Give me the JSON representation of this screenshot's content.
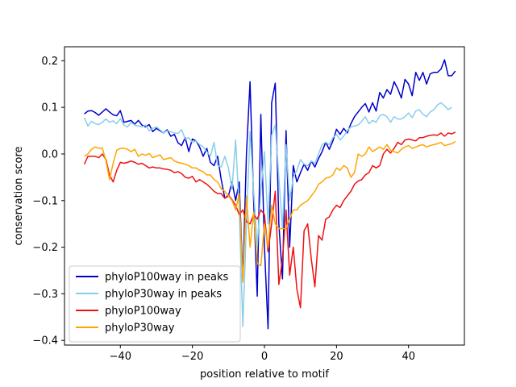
{
  "chart_data": {
    "type": "line",
    "title": "",
    "xlabel": "position relative to motif",
    "ylabel": "conservation score",
    "xlim": [
      -55.5,
      55.5
    ],
    "ylim": [
      -0.41,
      0.23
    ],
    "xticks": [
      -40,
      -20,
      0,
      20,
      40
    ],
    "yticks": [
      -0.4,
      -0.3,
      -0.2,
      -0.1,
      0.0,
      0.1,
      0.2
    ],
    "ytick_labels": [
      "−0.4",
      "−0.3",
      "−0.2",
      "−0.1",
      "0.0",
      "0.1",
      "0.2"
    ],
    "xtick_labels": [
      "−40",
      "−20",
      "0",
      "20",
      "40"
    ],
    "grid": false,
    "legend_position": "lower-left",
    "x_start": -50,
    "series": [
      {
        "name": "phyloP100way in peaks",
        "color": "#0000cc",
        "values": [
          0.086,
          0.092,
          0.093,
          0.089,
          0.083,
          0.09,
          0.097,
          0.09,
          0.084,
          0.082,
          0.093,
          0.068,
          0.07,
          0.072,
          0.064,
          0.072,
          0.062,
          0.058,
          0.063,
          0.048,
          0.055,
          0.05,
          0.045,
          0.052,
          0.038,
          0.042,
          0.024,
          0.018,
          0.035,
          0.005,
          0.032,
          0.028,
          0.015,
          -0.005,
          0.012,
          -0.018,
          -0.025,
          -0.005,
          -0.055,
          -0.095,
          -0.09,
          -0.06,
          -0.1,
          -0.06,
          -0.27,
          0.0,
          0.155,
          -0.1,
          -0.305,
          0.085,
          -0.2,
          -0.375,
          0.11,
          0.152,
          -0.15,
          -0.268,
          0.05,
          -0.2,
          -0.025,
          -0.06,
          -0.04,
          -0.022,
          -0.035,
          -0.015,
          -0.028,
          -0.01,
          0.005,
          0.025,
          0.01,
          0.028,
          0.053,
          0.042,
          0.055,
          0.045,
          0.065,
          0.08,
          0.09,
          0.1,
          0.108,
          0.09,
          0.11,
          0.092,
          0.132,
          0.12,
          0.138,
          0.128,
          0.155,
          0.14,
          0.12,
          0.16,
          0.15,
          0.125,
          0.175,
          0.158,
          0.175,
          0.15,
          0.172,
          0.175,
          0.175,
          0.182,
          0.202,
          0.168,
          0.168,
          0.178
        ]
      },
      {
        "name": "phyloP30way in peaks",
        "color": "#87ceeb",
        "values": [
          0.078,
          0.06,
          0.07,
          0.065,
          0.063,
          0.068,
          0.075,
          0.068,
          0.071,
          0.065,
          0.076,
          0.062,
          0.058,
          0.068,
          0.062,
          0.06,
          0.058,
          0.062,
          0.05,
          0.055,
          0.058,
          0.052,
          0.045,
          0.05,
          0.048,
          0.045,
          0.044,
          0.052,
          0.032,
          0.035,
          0.025,
          0.028,
          0.02,
          0.015,
          0.005,
          -0.005,
          0.025,
          -0.025,
          -0.028,
          -0.005,
          -0.03,
          -0.075,
          0.03,
          -0.12,
          -0.37,
          -0.15,
          0.048,
          -0.08,
          -0.2,
          -0.08,
          0.005,
          -0.15,
          0.04,
          0.062,
          -0.05,
          -0.16,
          0.02,
          -0.1,
          -0.05,
          -0.035,
          -0.012,
          -0.022,
          -0.025,
          -0.015,
          -0.02,
          0.0,
          0.02,
          0.025,
          0.02,
          0.035,
          0.042,
          0.03,
          0.038,
          0.05,
          0.058,
          0.06,
          0.062,
          0.07,
          0.08,
          0.065,
          0.072,
          0.068,
          0.082,
          0.085,
          0.08,
          0.068,
          0.08,
          0.075,
          0.075,
          0.08,
          0.088,
          0.078,
          0.092,
          0.095,
          0.085,
          0.08,
          0.09,
          0.095,
          0.105,
          0.11,
          0.103,
          0.095,
          0.1
        ]
      },
      {
        "name": "phyloP100way",
        "color": "#ee1111",
        "values": [
          -0.022,
          -0.005,
          -0.005,
          -0.005,
          -0.008,
          0.0,
          -0.012,
          -0.045,
          -0.06,
          -0.035,
          -0.018,
          -0.02,
          -0.018,
          -0.015,
          -0.018,
          -0.022,
          -0.02,
          -0.025,
          -0.03,
          -0.028,
          -0.03,
          -0.03,
          -0.032,
          -0.033,
          -0.035,
          -0.04,
          -0.038,
          -0.042,
          -0.05,
          -0.052,
          -0.048,
          -0.06,
          -0.055,
          -0.06,
          -0.065,
          -0.072,
          -0.08,
          -0.085,
          -0.085,
          -0.095,
          -0.088,
          -0.098,
          -0.11,
          -0.13,
          -0.12,
          -0.145,
          -0.15,
          -0.13,
          -0.14,
          -0.12,
          -0.13,
          -0.21,
          -0.15,
          -0.08,
          -0.28,
          -0.225,
          -0.12,
          -0.26,
          -0.2,
          -0.29,
          -0.33,
          -0.165,
          -0.15,
          -0.225,
          -0.285,
          -0.175,
          -0.185,
          -0.14,
          -0.135,
          -0.12,
          -0.11,
          -0.115,
          -0.1,
          -0.09,
          -0.08,
          -0.065,
          -0.058,
          -0.055,
          -0.045,
          -0.04,
          -0.025,
          -0.03,
          -0.025,
          0.0,
          0.01,
          0.002,
          0.012,
          0.025,
          0.02,
          0.03,
          0.032,
          0.03,
          0.028,
          0.035,
          0.035,
          0.038,
          0.04,
          0.041,
          0.04,
          0.045,
          0.038,
          0.045,
          0.043,
          0.047
        ]
      },
      {
        "name": "phyloP30way",
        "color": "#ffa500",
        "values": [
          -0.005,
          0.0,
          0.01,
          0.015,
          0.012,
          0.013,
          -0.015,
          -0.055,
          -0.02,
          0.008,
          0.012,
          0.012,
          0.01,
          0.005,
          0.01,
          -0.005,
          0.0,
          -0.003,
          0.001,
          -0.008,
          -0.005,
          -0.002,
          -0.012,
          -0.01,
          -0.008,
          -0.015,
          -0.018,
          -0.02,
          -0.022,
          -0.025,
          -0.03,
          -0.03,
          -0.035,
          -0.038,
          -0.045,
          -0.045,
          -0.055,
          -0.06,
          -0.075,
          -0.08,
          -0.09,
          -0.1,
          -0.12,
          -0.085,
          -0.275,
          -0.09,
          -0.2,
          -0.125,
          -0.235,
          -0.24,
          -0.15,
          -0.2,
          -0.11,
          -0.15,
          -0.16,
          -0.16,
          -0.16,
          -0.14,
          -0.12,
          -0.12,
          -0.11,
          -0.105,
          -0.1,
          -0.09,
          -0.08,
          -0.065,
          -0.06,
          -0.052,
          -0.05,
          -0.045,
          -0.03,
          -0.035,
          -0.025,
          -0.03,
          -0.05,
          -0.04,
          0.0,
          -0.005,
          0.0,
          0.015,
          0.005,
          0.01,
          0.015,
          0.01,
          0.02,
          0.008,
          0.005,
          0.002,
          0.01,
          0.015,
          0.018,
          0.012,
          0.015,
          0.018,
          0.02,
          0.015,
          0.018,
          0.02,
          0.022,
          0.025,
          0.018,
          0.02,
          0.022,
          0.027
        ]
      }
    ]
  }
}
